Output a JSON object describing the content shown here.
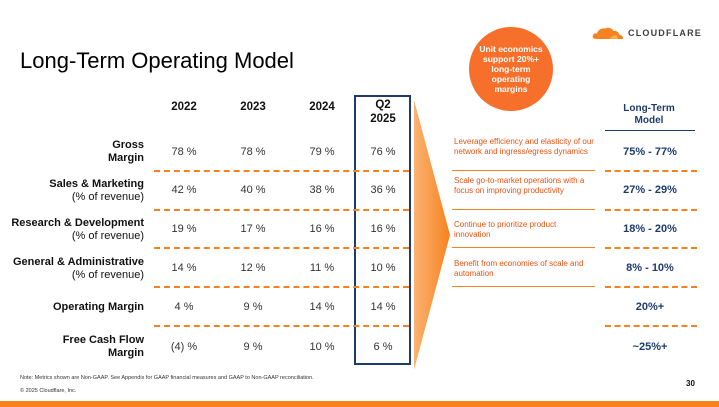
{
  "title": "Long-Term Operating Model",
  "logo": {
    "text": "CLOUDFLARE",
    "icon": "cloud-icon",
    "color": "#f6821f"
  },
  "bubble": {
    "text": "Unit economics support 20%+ long-term operating margins",
    "color": "#f6702c"
  },
  "columns": {
    "c2022": "2022",
    "c2023": "2023",
    "c2024": "2024",
    "q2_line1": "Q2",
    "q2_line2": "2025"
  },
  "long_term": {
    "head_line1": "Long-Term",
    "head_line2": "Model"
  },
  "rows": [
    {
      "label": "Gross",
      "label2": "Margin",
      "v2022": "78 %",
      "v2023": "78 %",
      "v2024": "79 %",
      "vq2": "76 %",
      "note": "Leverage efficiency and elasticity of our network and ingress/egress dynamics",
      "lt": "75% - 77%"
    },
    {
      "label": "Sales & Marketing",
      "label2": "(% of revenue)",
      "v2022": "42 %",
      "v2023": "40 %",
      "v2024": "38 %",
      "vq2": "36 %",
      "note": "Scale go-to-market operations with a focus on improving productivity",
      "lt": "27% - 29%"
    },
    {
      "label": "Research & Development",
      "label2": "(% of revenue)",
      "v2022": "19 %",
      "v2023": "17 %",
      "v2024": "16 %",
      "vq2": "16 %",
      "note": "Continue to prioritize product innovation",
      "lt": "18% - 20%"
    },
    {
      "label": "General & Administrative",
      "label2": "(% of revenue)",
      "v2022": "14 %",
      "v2023": "12 %",
      "v2024": "11 %",
      "vq2": "10 %",
      "note": "Benefit from economies of scale and automation",
      "lt": "8% - 10%"
    },
    {
      "label": "Operating Margin",
      "label2": "",
      "v2022": "4 %",
      "v2023": "9 %",
      "v2024": "14 %",
      "vq2": "14 %",
      "note": "",
      "lt": "20%+"
    },
    {
      "label": "Free Cash Flow",
      "label2": "Margin",
      "v2022": "(4) %",
      "v2023": "9 %",
      "v2024": "10 %",
      "vq2": "6 %",
      "note": "",
      "lt": "~25%+"
    }
  ],
  "footnote": "Note: Metrics shown are Non-GAAP. See Appendix for GAAP financial measures and GAAP to Non-GAAP reconciliation.",
  "copyright": "© 2025 Cloudflare, Inc.",
  "page_number": "30",
  "accent_color": "#f6821f",
  "navy_color": "#1f3b6e"
}
